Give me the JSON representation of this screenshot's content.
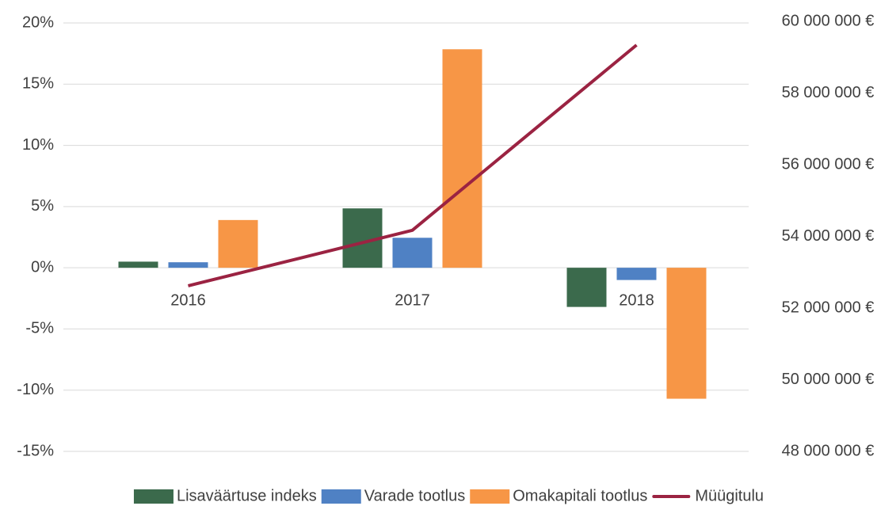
{
  "chart_data": {
    "type": "bar",
    "categories": [
      "2016",
      "2017",
      "2018"
    ],
    "series": [
      {
        "name": "Lisaväärtuse indeks",
        "color": "#3b6a4c",
        "values": [
          0.5,
          4.85,
          -3.2
        ]
      },
      {
        "name": "Varade tootlus",
        "color": "#4f81c4",
        "values": [
          0.45,
          2.45,
          -1.0
        ]
      },
      {
        "name": "Omakapitali tootlus",
        "color": "#f79646",
        "values": [
          3.9,
          17.85,
          -10.7
        ]
      },
      {
        "name": "Müügitulu",
        "type": "line",
        "axis": "y2",
        "color": "#9b2342",
        "values": [
          52620000,
          54170000,
          59340000
        ]
      }
    ],
    "ylim": [
      -15,
      20
    ],
    "yticks": [
      {
        "value": -15,
        "label": "-15%"
      },
      {
        "value": -10,
        "label": "-10%"
      },
      {
        "value": -5,
        "label": "-5%"
      },
      {
        "value": 0,
        "label": "0%"
      },
      {
        "value": 5,
        "label": "5%"
      },
      {
        "value": 10,
        "label": "10%"
      },
      {
        "value": 15,
        "label": "15%"
      },
      {
        "value": 20,
        "label": "20%"
      }
    ],
    "y2lim": [
      48000000,
      60000000
    ],
    "y2ticks": [
      {
        "value": 48000000,
        "label": "48 000 000 €"
      },
      {
        "value": 50000000,
        "label": "50 000 000 €"
      },
      {
        "value": 52000000,
        "label": "52 000 000 €"
      },
      {
        "value": 54000000,
        "label": "54 000 000 €"
      },
      {
        "value": 56000000,
        "label": "56 000 000 €"
      },
      {
        "value": 58000000,
        "label": "58 000 000 €"
      },
      {
        "value": 60000000,
        "label": "60 000 000 €"
      }
    ],
    "grid": true,
    "legend": "bottom"
  }
}
